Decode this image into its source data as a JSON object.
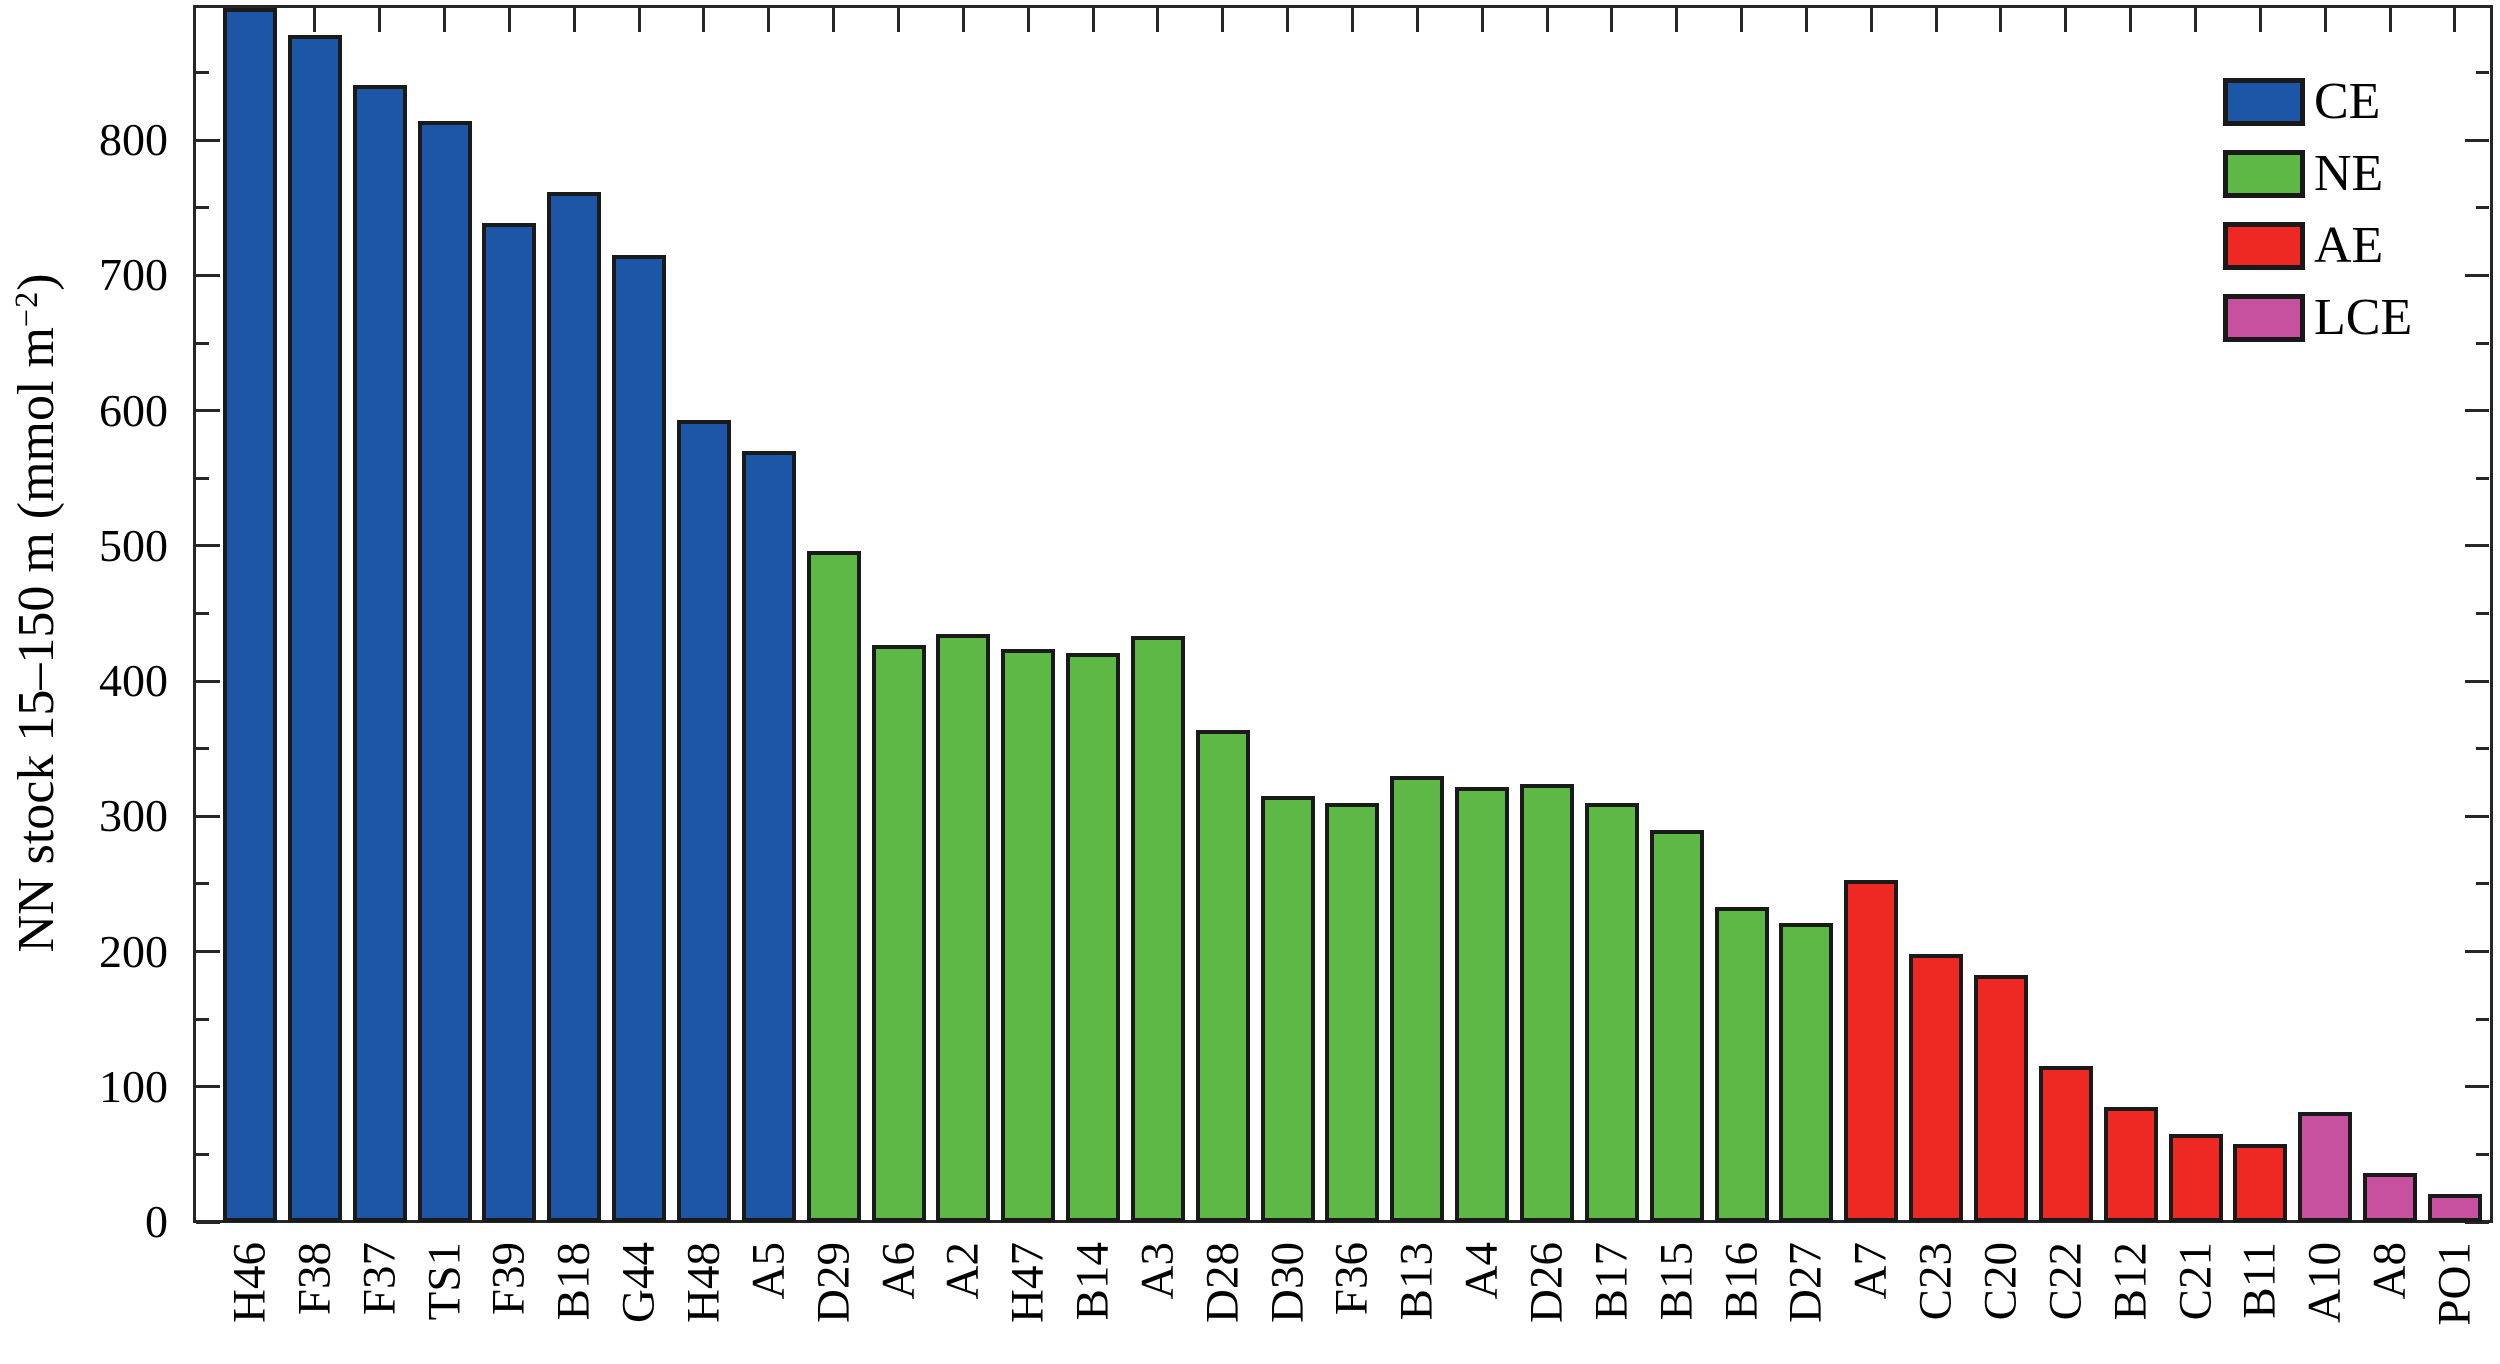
{
  "chart_data": {
    "type": "bar",
    "title": "",
    "ylabel": "NN stock 15–150 m (mmol m−2)",
    "ylabel_main": "NN stock 15–150 m (mmol m",
    "ylabel_sup": "−2",
    "ylabel_close": ")",
    "ylim": [
      0,
      900
    ],
    "yticks": [
      0,
      100,
      200,
      300,
      400,
      500,
      600,
      700,
      800
    ],
    "yminor_step": 50,
    "grid": false,
    "legend_position": "top-right",
    "legend": [
      {
        "label": "CE",
        "color": "#1e56a7"
      },
      {
        "label": "NE",
        "color": "#5db845"
      },
      {
        "label": "AE",
        "color": "#ee2924"
      },
      {
        "label": "LCE",
        "color": "#c7509f"
      }
    ],
    "categories": [
      "H46",
      "F38",
      "F37",
      "TS1",
      "F39",
      "B18",
      "G44",
      "H48",
      "A5",
      "D29",
      "A6",
      "A2",
      "H47",
      "B14",
      "A3",
      "D28",
      "D30",
      "F36",
      "B13",
      "A4",
      "D26",
      "B17",
      "B15",
      "B16",
      "D27",
      "A7",
      "C23",
      "C20",
      "C22",
      "B12",
      "C21",
      "B11",
      "A10",
      "A8",
      "PO1"
    ],
    "bars": [
      {
        "label": "H46",
        "value": 898,
        "group": "CE"
      },
      {
        "label": "F38",
        "value": 878,
        "group": "CE"
      },
      {
        "label": "F37",
        "value": 841,
        "group": "CE"
      },
      {
        "label": "TS1",
        "value": 814,
        "group": "CE"
      },
      {
        "label": "F39",
        "value": 739,
        "group": "CE"
      },
      {
        "label": "B18",
        "value": 762,
        "group": "CE"
      },
      {
        "label": "G44",
        "value": 715,
        "group": "CE"
      },
      {
        "label": "H48",
        "value": 593,
        "group": "CE"
      },
      {
        "label": "A5",
        "value": 570,
        "group": "CE"
      },
      {
        "label": "D29",
        "value": 496,
        "group": "NE"
      },
      {
        "label": "A6",
        "value": 427,
        "group": "NE"
      },
      {
        "label": "A2",
        "value": 435,
        "group": "NE"
      },
      {
        "label": "H47",
        "value": 424,
        "group": "NE"
      },
      {
        "label": "B14",
        "value": 421,
        "group": "NE"
      },
      {
        "label": "A3",
        "value": 433,
        "group": "NE"
      },
      {
        "label": "D28",
        "value": 364,
        "group": "NE"
      },
      {
        "label": "D30",
        "value": 315,
        "group": "NE"
      },
      {
        "label": "F36",
        "value": 310,
        "group": "NE"
      },
      {
        "label": "B13",
        "value": 330,
        "group": "NE"
      },
      {
        "label": "A4",
        "value": 322,
        "group": "NE"
      },
      {
        "label": "D26",
        "value": 324,
        "group": "NE"
      },
      {
        "label": "B17",
        "value": 310,
        "group": "NE"
      },
      {
        "label": "B15",
        "value": 290,
        "group": "NE"
      },
      {
        "label": "B16",
        "value": 233,
        "group": "NE"
      },
      {
        "label": "D27",
        "value": 221,
        "group": "NE"
      },
      {
        "label": "A7",
        "value": 253,
        "group": "AE"
      },
      {
        "label": "C23",
        "value": 198,
        "group": "AE"
      },
      {
        "label": "C20",
        "value": 183,
        "group": "AE"
      },
      {
        "label": "C22",
        "value": 115,
        "group": "AE"
      },
      {
        "label": "B12",
        "value": 85,
        "group": "AE"
      },
      {
        "label": "C21",
        "value": 65,
        "group": "AE"
      },
      {
        "label": "B11",
        "value": 58,
        "group": "AE"
      },
      {
        "label": "A10",
        "value": 81,
        "group": "LCE"
      },
      {
        "label": "A8",
        "value": 36,
        "group": "LCE"
      },
      {
        "label": "PO1",
        "value": 21,
        "group": "LCE"
      }
    ],
    "colors": {
      "axis": "#262626",
      "bar_edge": "#1a1a1a",
      "background": "#ffffff"
    }
  }
}
